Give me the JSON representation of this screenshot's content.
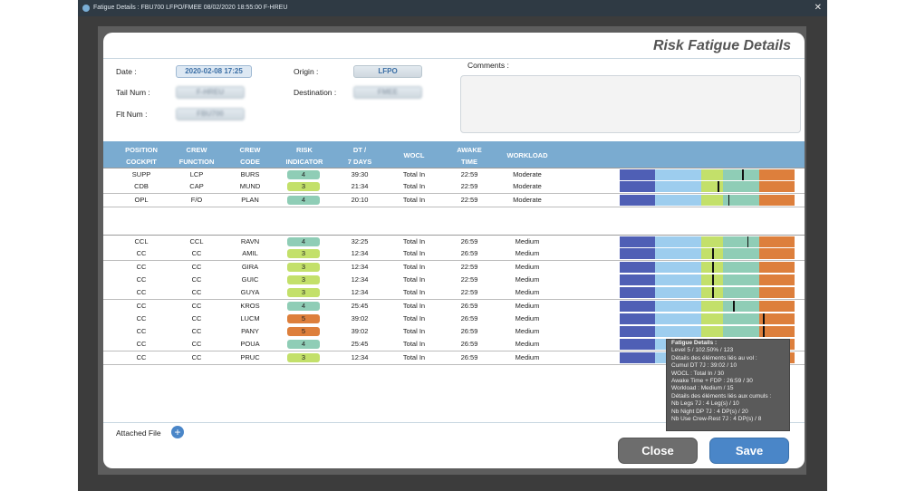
{
  "window": {
    "title": "Fatigue Details : FBU700 LFPO/FMEE 08/02/2020 18:55:00 F-HREU",
    "close_glyph": "✕"
  },
  "panel": {
    "title": "Risk Fatigue Details"
  },
  "fields": {
    "date_label": "Date :",
    "date_value": "2020-02-08 17:25",
    "tail_label": "Tail Num :",
    "tail_value": "F-HREU",
    "flt_label": "Flt Num :",
    "flt_value": "FBU700",
    "origin_label": "Origin :",
    "origin_value": "LFPO",
    "destination_label": "Destination :",
    "destination_value": "FMEE",
    "comments_label": "Comments :"
  },
  "table": {
    "headers": [
      [
        "POSITION",
        "COCKPIT"
      ],
      [
        "CREW",
        "FUNCTION"
      ],
      [
        "CREW",
        "CODE"
      ],
      [
        "RISK",
        "INDICATOR"
      ],
      [
        "DT /",
        "7 DAYS"
      ],
      [
        "WOCL",
        ""
      ],
      [
        "AWAKE",
        "TIME"
      ],
      [
        "WORKLOAD",
        ""
      ]
    ],
    "risk_colors": {
      "3": "#c3e06a",
      "4": "#8fcdb6",
      "5": "#dd7f3c"
    },
    "bar_colors": [
      "#4f5fb5",
      "#9dcdee",
      "#c3e06a",
      "#8fcdb6",
      "#dd7f3c"
    ],
    "cockpit": [
      {
        "pos": "SUPP",
        "func": "LCP",
        "code": "BURS",
        "risk": "4",
        "dt": "39:30",
        "wocl": "Total In",
        "awake": "22:59",
        "workload": "Moderate",
        "marker": 0.7
      },
      {
        "pos": "CDB",
        "func": "CAP",
        "code": "MUND",
        "risk": "3",
        "dt": "21:34",
        "wocl": "Total In",
        "awake": "22:59",
        "workload": "Moderate",
        "marker": 0.56
      },
      {
        "pos": "OPL",
        "func": "F/O",
        "code": "PLAN",
        "risk": "4",
        "dt": "20:10",
        "wocl": "Total In",
        "awake": "22:59",
        "workload": "Moderate",
        "marker": 0.62
      }
    ],
    "cabin": [
      {
        "pos": "CCL",
        "func": "CCL",
        "code": "RAVN",
        "risk": "4",
        "dt": "32:25",
        "wocl": "Total In",
        "awake": "26:59",
        "workload": "Medium",
        "marker": 0.73
      },
      {
        "pos": "CC",
        "func": "CC",
        "code": "AMIL",
        "risk": "3",
        "dt": "12:34",
        "wocl": "Total In",
        "awake": "26:59",
        "workload": "Medium",
        "marker": 0.53
      },
      {
        "pos": "CC",
        "func": "CC",
        "code": "GIRA",
        "risk": "3",
        "dt": "12:34",
        "wocl": "Total In",
        "awake": "22:59",
        "workload": "Medium",
        "marker": 0.53
      },
      {
        "pos": "CC",
        "func": "CC",
        "code": "GUIC",
        "risk": "3",
        "dt": "12:34",
        "wocl": "Total In",
        "awake": "22:59",
        "workload": "Medium",
        "marker": 0.53
      },
      {
        "pos": "CC",
        "func": "CC",
        "code": "GUYA",
        "risk": "3",
        "dt": "12:34",
        "wocl": "Total In",
        "awake": "22:59",
        "workload": "Medium",
        "marker": 0.53
      },
      {
        "pos": "CC",
        "func": "CC",
        "code": "KROS",
        "risk": "4",
        "dt": "25:45",
        "wocl": "Total In",
        "awake": "26:59",
        "workload": "Medium",
        "marker": 0.65
      },
      {
        "pos": "CC",
        "func": "CC",
        "code": "LUCM",
        "risk": "5",
        "dt": "39:02",
        "wocl": "Total In",
        "awake": "26:59",
        "workload": "Medium",
        "marker": 0.82
      },
      {
        "pos": "CC",
        "func": "CC",
        "code": "PANY",
        "risk": "5",
        "dt": "39:02",
        "wocl": "Total In",
        "awake": "26:59",
        "workload": "Medium",
        "marker": 0.82
      },
      {
        "pos": "CC",
        "func": "CC",
        "code": "POUA",
        "risk": "4",
        "dt": "25:45",
        "wocl": "Total In",
        "awake": "26:59",
        "workload": "Medium",
        "marker": 0.65
      },
      {
        "pos": "CC",
        "func": "CC",
        "code": "PRUC",
        "risk": "3",
        "dt": "12:34",
        "wocl": "Total In",
        "awake": "26:59",
        "workload": "Medium",
        "marker": 0.53
      }
    ]
  },
  "tooltip": {
    "title": "Fatigue Details :",
    "lines": [
      "Level 5 / 102.50% / 123",
      "Détails des éléments liés au vol :",
      "Cumul DT 7J : 39:02 / 10",
      "WOCL : Total In / 30",
      "Awake Time + FDP : 26:59 / 30",
      "Workload : Medium / 15",
      "Détails des éléments liés aux cumuls :",
      "Nb Legs 7J : 4 Leg(s) / 10",
      "Nb Night DP 7J : 4 DP(s) / 20",
      "Nb Use Crew-Rest 7J : 4 DP(s) / 8"
    ]
  },
  "footer": {
    "attached_label": "Attached File",
    "plus_glyph": "+",
    "close_label": "Close",
    "save_label": "Save"
  }
}
